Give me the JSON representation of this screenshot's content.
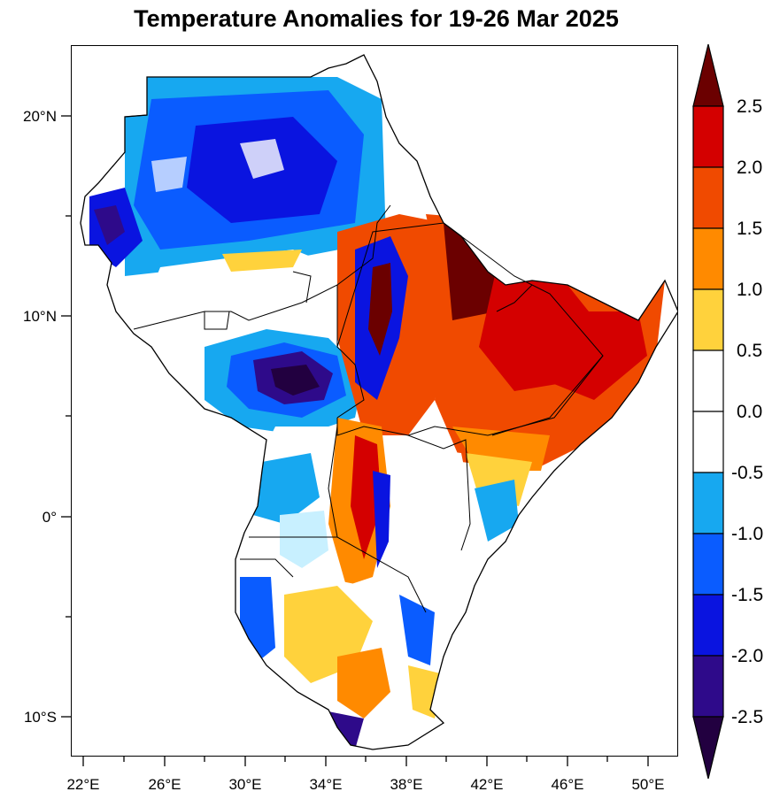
{
  "title": "Temperature Anomalies for 19-26 Mar 2025",
  "map": {
    "lon_ticks": [
      "22°E",
      "26°E",
      "30°E",
      "34°E",
      "38°E",
      "42°E",
      "46°E",
      "50°E"
    ],
    "lat_ticks": [
      "20°N",
      "10°N",
      "0°",
      "10°S"
    ],
    "lon_range": [
      21.5,
      51.5
    ],
    "lat_range": [
      -12,
      23.5
    ]
  },
  "colorbar": {
    "labels": [
      "2.5",
      "2.0",
      "1.5",
      "1.0",
      "0.5",
      "0.0",
      "-0.5",
      "-1.0",
      "-1.5",
      "-2.0",
      "-2.5"
    ],
    "colors_top_to_bottom": [
      "#6b0000",
      "#d40000",
      "#f04a00",
      "#ff8a00",
      "#ffd23c",
      "#ffffff",
      "#ffffff",
      "#17a8f0",
      "#0a5cff",
      "#0a14e0",
      "#2e0a8a",
      "#220040"
    ]
  }
}
